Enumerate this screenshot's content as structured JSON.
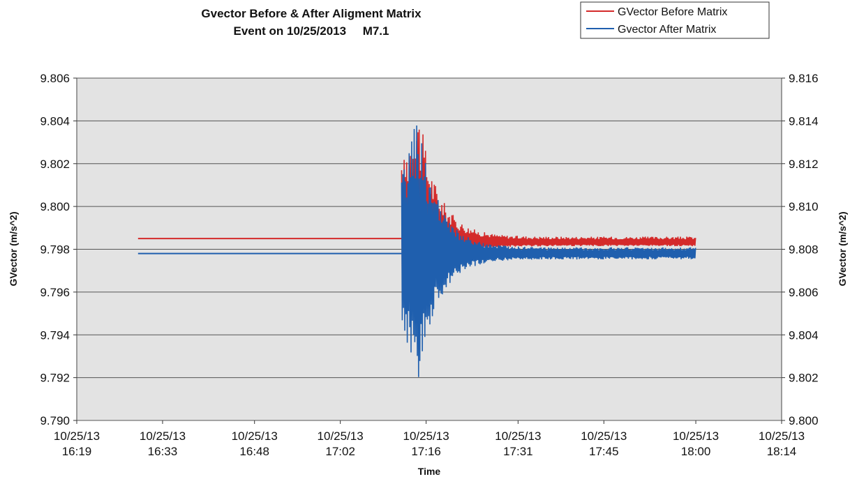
{
  "chart_data": {
    "type": "line",
    "title_line1": "Gvector Before & After Aligment Matrix",
    "title_line2": "Event on 10/25/2013     M7.1",
    "xlabel": "Time",
    "ylabel_left": "GVector (m/s^2)",
    "ylabel_right": "GVector (m/s^2)",
    "x_ticks": [
      {
        "date": "10/25/13",
        "time": "16:19"
      },
      {
        "date": "10/25/13",
        "time": "16:33"
      },
      {
        "date": "10/25/13",
        "time": "16:48"
      },
      {
        "date": "10/25/13",
        "time": "17:02"
      },
      {
        "date": "10/25/13",
        "time": "17:16"
      },
      {
        "date": "10/25/13",
        "time": "17:31"
      },
      {
        "date": "10/25/13",
        "time": "17:45"
      },
      {
        "date": "10/25/13",
        "time": "18:00"
      },
      {
        "date": "10/25/13",
        "time": "18:14"
      }
    ],
    "y_left_ticks": [
      "9.790",
      "9.792",
      "9.794",
      "9.796",
      "9.798",
      "9.800",
      "9.802",
      "9.804",
      "9.806"
    ],
    "y_right_ticks": [
      "9.800",
      "9.802",
      "9.804",
      "9.806",
      "9.808",
      "9.810",
      "9.812",
      "9.814",
      "9.816"
    ],
    "ylim_left": [
      9.79,
      9.806
    ],
    "ylim_right": [
      9.8,
      9.816
    ],
    "xlim": [
      "16:19",
      "18:14"
    ],
    "grid": true,
    "legend_position": "top-right",
    "series": [
      {
        "name": "GVector Before Matrix",
        "color": "#d42a2a",
        "axis": "left",
        "baseline": 9.7985,
        "event_start": "17:12",
        "event_peak": 9.8048,
        "event_trough": 9.7948,
        "settled": 9.7983,
        "end": "18:00"
      },
      {
        "name": "Gvector After Matrix",
        "color": "#1f5fae",
        "axis": "left",
        "baseline": 9.7978,
        "event_start": "17:12",
        "event_peak": 9.8043,
        "event_trough": 9.7917,
        "settled": 9.7978,
        "end": "18:00"
      }
    ]
  }
}
